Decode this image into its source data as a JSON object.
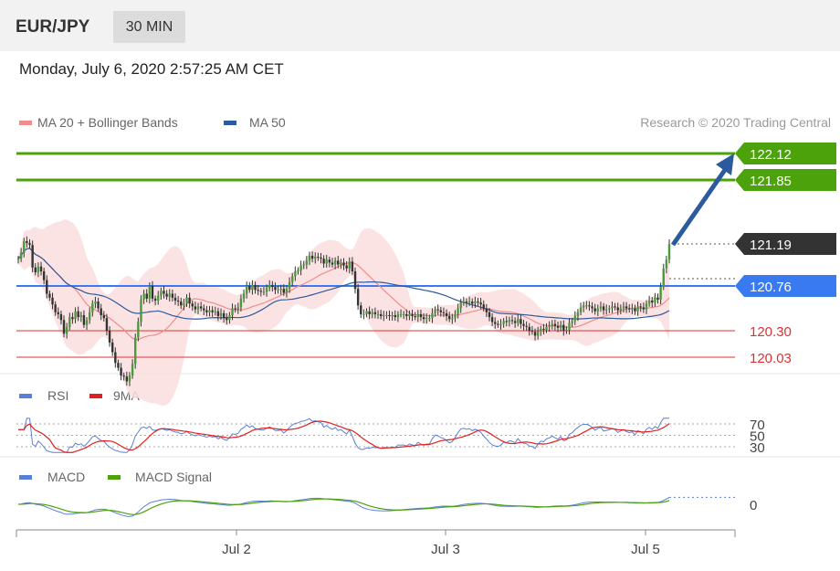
{
  "header": {
    "pair": "EUR/JPY",
    "timeframe": "30 MIN"
  },
  "timestamp": "Monday, July 6, 2020 2:57:25 AM CET",
  "legend": {
    "ma20_label": "MA 20 + Bollinger Bands",
    "ma20_color": "#f28b8b",
    "ma50_label": "MA 50",
    "ma50_color": "#2b5a9e"
  },
  "credit": "Research © 2020 Trading Central",
  "chart_data": {
    "type": "line",
    "title": "EUR/JPY",
    "x_ticks": [
      "Jul 2",
      "Jul 3",
      "Jul 5"
    ],
    "price_levels": [
      {
        "value": "122.12",
        "kind": "resistance",
        "color": "#4ca20a"
      },
      {
        "value": "121.85",
        "kind": "resistance",
        "color": "#4ca20a"
      },
      {
        "value": "121.19",
        "kind": "last",
        "color": "#333333"
      },
      {
        "value": "120.76",
        "kind": "pivot",
        "color": "#3a7af0"
      },
      {
        "value": "120.30",
        "kind": "support",
        "color": "#e03030"
      },
      {
        "value": "120.03",
        "kind": "support",
        "color": "#e03030"
      }
    ],
    "price_close": [
      121.04,
      121.1,
      121.22,
      121.2,
      121.18,
      120.95,
      120.9,
      120.96,
      120.91,
      120.82,
      120.68,
      120.64,
      120.57,
      120.49,
      120.47,
      120.41,
      120.27,
      120.34,
      120.44,
      120.42,
      120.5,
      120.44,
      120.46,
      120.36,
      120.41,
      120.49,
      120.58,
      120.6,
      120.53,
      120.46,
      120.43,
      120.3,
      120.18,
      120.08,
      119.97,
      119.92,
      119.84,
      119.83,
      119.78,
      119.84,
      119.96,
      120.23,
      120.39,
      120.62,
      120.68,
      120.63,
      120.76,
      120.63,
      120.61,
      120.66,
      120.71,
      120.68,
      120.65,
      120.68,
      120.64,
      120.61,
      120.6,
      120.56,
      120.58,
      120.64,
      120.58,
      120.55,
      120.52,
      120.55,
      120.53,
      120.51,
      120.49,
      120.51,
      120.49,
      120.5,
      120.45,
      120.48,
      120.43,
      120.41,
      120.46,
      120.53,
      120.52,
      120.54,
      120.63,
      120.68,
      120.76,
      120.72,
      120.77,
      120.72,
      120.71,
      120.7,
      120.7,
      120.74,
      120.77,
      120.75,
      120.72,
      120.72,
      120.73,
      120.69,
      120.73,
      120.8,
      120.86,
      120.91,
      120.92,
      120.97,
      120.98,
      121.02,
      121.07,
      121.04,
      121.06,
      121.05,
      121.04,
      120.99,
      121.03,
      121.0,
      120.98,
      121.02,
      120.98,
      121.0,
      120.97,
      120.94,
      121.01,
      120.91,
      120.73,
      120.56,
      120.47,
      120.47,
      120.5,
      120.47,
      120.49,
      120.47,
      120.47,
      120.45,
      120.46,
      120.46,
      120.45,
      120.46,
      120.44,
      120.47,
      120.47,
      120.47,
      120.45,
      120.47,
      120.45,
      120.44,
      120.47,
      120.44,
      120.42,
      120.43,
      120.43,
      120.48,
      120.52,
      120.51,
      120.49,
      120.48,
      120.45,
      120.42,
      120.43,
      120.47,
      120.53,
      120.59,
      120.6,
      120.59,
      120.6,
      120.58,
      120.6,
      120.59,
      120.57,
      120.53,
      120.49,
      120.44,
      120.39,
      120.37,
      120.36,
      120.37,
      120.4,
      120.39,
      120.41,
      120.4,
      120.38,
      120.42,
      120.37,
      120.35,
      120.34,
      120.3,
      120.29,
      120.25,
      120.29,
      120.32,
      120.31,
      120.34,
      120.35,
      120.37,
      120.35,
      120.33,
      120.36,
      120.3,
      120.31,
      120.38,
      120.4,
      120.45,
      120.49,
      120.54,
      120.56,
      120.56,
      120.55,
      120.53,
      120.5,
      120.53,
      120.55,
      120.51,
      120.52,
      120.53,
      120.55,
      120.54,
      120.51,
      120.53,
      120.55,
      120.53,
      120.52,
      120.53,
      120.5,
      120.55,
      120.54,
      120.52,
      120.58,
      120.61,
      120.59,
      120.64,
      120.62,
      120.75,
      120.94,
      121.03,
      121.19
    ],
    "rsi": {
      "levels": [
        70,
        50,
        30
      ],
      "series": [
        "RSI",
        "9MA"
      ]
    },
    "macd": {
      "levels": [
        0
      ],
      "series": [
        "MACD",
        "MACD Signal"
      ]
    }
  },
  "rsi_legend": {
    "rsi_label": "RSI",
    "rsi_color": "#5a7fd8",
    "ma_label": "9MA",
    "ma_color": "#e02020"
  },
  "macd_legend": {
    "macd_label": "MACD",
    "macd_color": "#5a7fd8",
    "signal_label": "MACD Signal",
    "signal_color": "#4ca20a"
  }
}
